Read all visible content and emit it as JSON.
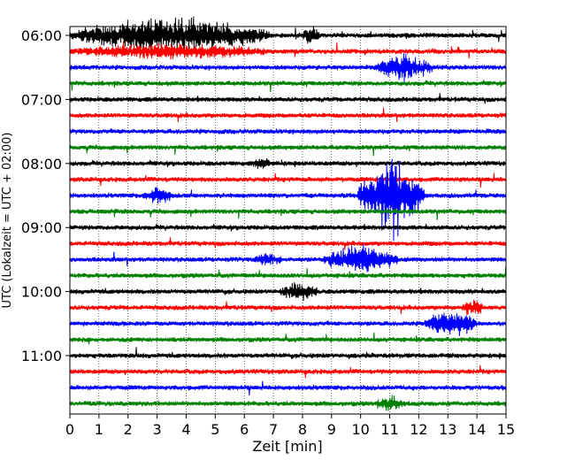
{
  "chart_data": {
    "type": "line",
    "title": "",
    "xlabel": "Zeit  [min]",
    "ylabel": "UTC (Lokalzeit = UTC + 02:00)",
    "xlim": [
      0,
      15
    ],
    "x_ticks": [
      "0",
      "1",
      "2",
      "3",
      "4",
      "5",
      "6",
      "7",
      "8",
      "9",
      "10",
      "11",
      "12",
      "13",
      "14",
      "15"
    ],
    "y_ticks": [
      "06:00",
      "07:00",
      "08:00",
      "09:00",
      "10:00",
      "11:00"
    ],
    "grid": "vertical-dotted",
    "trace_colors": [
      "#000000",
      "#ff0000",
      "#0000ff",
      "#008000"
    ],
    "traces_per_hour": 4,
    "trace_count": 24,
    "first_trace_time": "06:00",
    "events": [
      {
        "trace": 0,
        "x_start": 0.0,
        "x_end": 7.0,
        "amplitude": 1.0
      },
      {
        "trace": 0,
        "x_start": 8.0,
        "x_end": 8.6,
        "amplitude": 0.5
      },
      {
        "trace": 1,
        "x_start": 0.0,
        "x_end": 7.0,
        "amplitude": 0.35
      },
      {
        "trace": 2,
        "x_start": 10.5,
        "x_end": 12.5,
        "amplitude": 0.7
      },
      {
        "trace": 8,
        "x_start": 6.3,
        "x_end": 6.9,
        "amplitude": 0.3
      },
      {
        "trace": 10,
        "x_start": 9.9,
        "x_end": 12.2,
        "amplitude": 2.5
      },
      {
        "trace": 10,
        "x_start": 2.5,
        "x_end": 3.6,
        "amplitude": 0.45
      },
      {
        "trace": 14,
        "x_start": 8.7,
        "x_end": 11.3,
        "amplitude": 0.8
      },
      {
        "trace": 14,
        "x_start": 6.3,
        "x_end": 7.3,
        "amplitude": 0.3
      },
      {
        "trace": 16,
        "x_start": 7.2,
        "x_end": 8.5,
        "amplitude": 0.45
      },
      {
        "trace": 17,
        "x_start": 13.5,
        "x_end": 14.2,
        "amplitude": 0.5
      },
      {
        "trace": 18,
        "x_start": 12.2,
        "x_end": 14.0,
        "amplitude": 0.75
      },
      {
        "trace": 23,
        "x_start": 10.5,
        "x_end": 11.5,
        "amplitude": 0.4
      }
    ]
  }
}
